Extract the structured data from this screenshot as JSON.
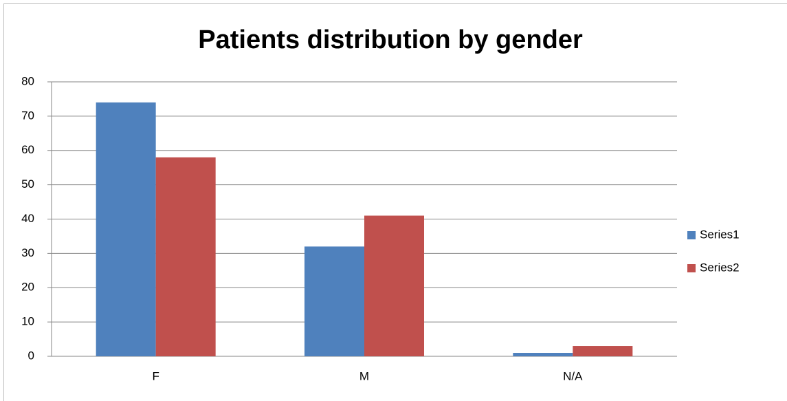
{
  "chart_data": {
    "type": "bar",
    "title": "Patients distribution by gender",
    "categories": [
      "F",
      "M",
      "N/A"
    ],
    "series": [
      {
        "name": "Series1",
        "color": "#4f81bd",
        "values": [
          74,
          32,
          1
        ]
      },
      {
        "name": "Series2",
        "color": "#c0504d",
        "values": [
          58,
          41,
          3
        ]
      }
    ],
    "ylim": [
      0,
      80
    ],
    "yticks": [
      0,
      10,
      20,
      30,
      40,
      50,
      60,
      70,
      80
    ],
    "grid": true,
    "legend": "right"
  }
}
